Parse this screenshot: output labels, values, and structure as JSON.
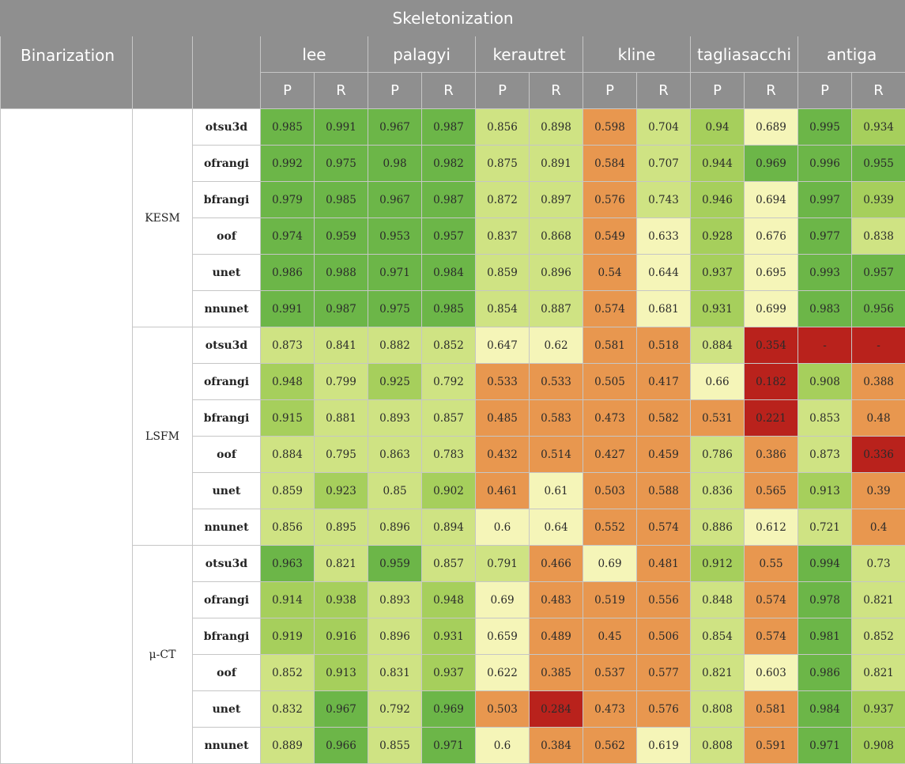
{
  "header": {
    "title": "Skeletonization",
    "binarization_label": "Binarization",
    "algorithms": [
      "lee",
      "palagyi",
      "kerautret",
      "kline",
      "tagliasacchi",
      "antiga"
    ],
    "metrics": [
      "P",
      "R"
    ]
  },
  "colors": {
    "header_bg": "#8f8f8f",
    "scale": [
      "#b9221c",
      "#e8974f",
      "#f5f5b8",
      "#cfe383",
      "#6cb648"
    ]
  },
  "groups": [
    {
      "modality": "KESM",
      "rows": [
        {
          "method": "otsu3d",
          "values": [
            "0.985",
            "0.991",
            "0.967",
            "0.987",
            "0.856",
            "0.898",
            "0.598",
            "0.704",
            "0.94",
            "0.689",
            "0.995",
            "0.934"
          ]
        },
        {
          "method": "ofrangi",
          "values": [
            "0.992",
            "0.975",
            "0.98",
            "0.982",
            "0.875",
            "0.891",
            "0.584",
            "0.707",
            "0.944",
            "0.969",
            "0.996",
            "0.955"
          ]
        },
        {
          "method": "bfrangi",
          "values": [
            "0.979",
            "0.985",
            "0.967",
            "0.987",
            "0.872",
            "0.897",
            "0.576",
            "0.743",
            "0.946",
            "0.694",
            "0.997",
            "0.939"
          ]
        },
        {
          "method": "oof",
          "values": [
            "0.974",
            "0.959",
            "0.953",
            "0.957",
            "0.837",
            "0.868",
            "0.549",
            "0.633",
            "0.928",
            "0.676",
            "0.977",
            "0.838"
          ]
        },
        {
          "method": "unet",
          "values": [
            "0.986",
            "0.988",
            "0.971",
            "0.984",
            "0.859",
            "0.896",
            "0.54",
            "0.644",
            "0.937",
            "0.695",
            "0.993",
            "0.957"
          ]
        },
        {
          "method": "nnunet",
          "values": [
            "0.991",
            "0.987",
            "0.975",
            "0.985",
            "0.854",
            "0.887",
            "0.574",
            "0.681",
            "0.931",
            "0.699",
            "0.983",
            "0.956"
          ]
        }
      ]
    },
    {
      "modality": "LSFM",
      "rows": [
        {
          "method": "otsu3d",
          "values": [
            "0.873",
            "0.841",
            "0.882",
            "0.852",
            "0.647",
            "0.62",
            "0.581",
            "0.518",
            "0.884",
            "0.354",
            "-",
            "-"
          ]
        },
        {
          "method": "ofrangi",
          "values": [
            "0.948",
            "0.799",
            "0.925",
            "0.792",
            "0.533",
            "0.533",
            "0.505",
            "0.417",
            "0.66",
            "0.182",
            "0.908",
            "0.388"
          ]
        },
        {
          "method": "bfrangi",
          "values": [
            "0.915",
            "0.881",
            "0.893",
            "0.857",
            "0.485",
            "0.583",
            "0.473",
            "0.582",
            "0.531",
            "0.221",
            "0.853",
            "0.48"
          ]
        },
        {
          "method": "oof",
          "values": [
            "0.884",
            "0.795",
            "0.863",
            "0.783",
            "0.432",
            "0.514",
            "0.427",
            "0.459",
            "0.786",
            "0.386",
            "0.873",
            "0.336"
          ]
        },
        {
          "method": "unet",
          "values": [
            "0.859",
            "0.923",
            "0.85",
            "0.902",
            "0.461",
            "0.61",
            "0.503",
            "0.588",
            "0.836",
            "0.565",
            "0.913",
            "0.39"
          ]
        },
        {
          "method": "nnunet",
          "values": [
            "0.856",
            "0.895",
            "0.896",
            "0.894",
            "0.6",
            "0.64",
            "0.552",
            "0.574",
            "0.886",
            "0.612",
            "0.721",
            "0.4"
          ]
        }
      ]
    },
    {
      "modality": "μ-CT",
      "rows": [
        {
          "method": "otsu3d",
          "values": [
            "0.963",
            "0.821",
            "0.959",
            "0.857",
            "0.791",
            "0.466",
            "0.69",
            "0.481",
            "0.912",
            "0.55",
            "0.994",
            "0.73"
          ]
        },
        {
          "method": "ofrangi",
          "values": [
            "0.914",
            "0.938",
            "0.893",
            "0.948",
            "0.69",
            "0.483",
            "0.519",
            "0.556",
            "0.848",
            "0.574",
            "0.978",
            "0.821"
          ]
        },
        {
          "method": "bfrangi",
          "values": [
            "0.919",
            "0.916",
            "0.896",
            "0.931",
            "0.659",
            "0.489",
            "0.45",
            "0.506",
            "0.854",
            "0.574",
            "0.981",
            "0.852"
          ]
        },
        {
          "method": "oof",
          "values": [
            "0.852",
            "0.913",
            "0.831",
            "0.937",
            "0.622",
            "0.385",
            "0.537",
            "0.577",
            "0.821",
            "0.603",
            "0.986",
            "0.821"
          ]
        },
        {
          "method": "unet",
          "values": [
            "0.832",
            "0.967",
            "0.792",
            "0.969",
            "0.503",
            "0.284",
            "0.473",
            "0.576",
            "0.808",
            "0.581",
            "0.984",
            "0.937"
          ]
        },
        {
          "method": "nnunet",
          "values": [
            "0.889",
            "0.966",
            "0.855",
            "0.971",
            "0.6",
            "0.384",
            "0.562",
            "0.619",
            "0.808",
            "0.591",
            "0.971",
            "0.908"
          ]
        }
      ]
    }
  ]
}
